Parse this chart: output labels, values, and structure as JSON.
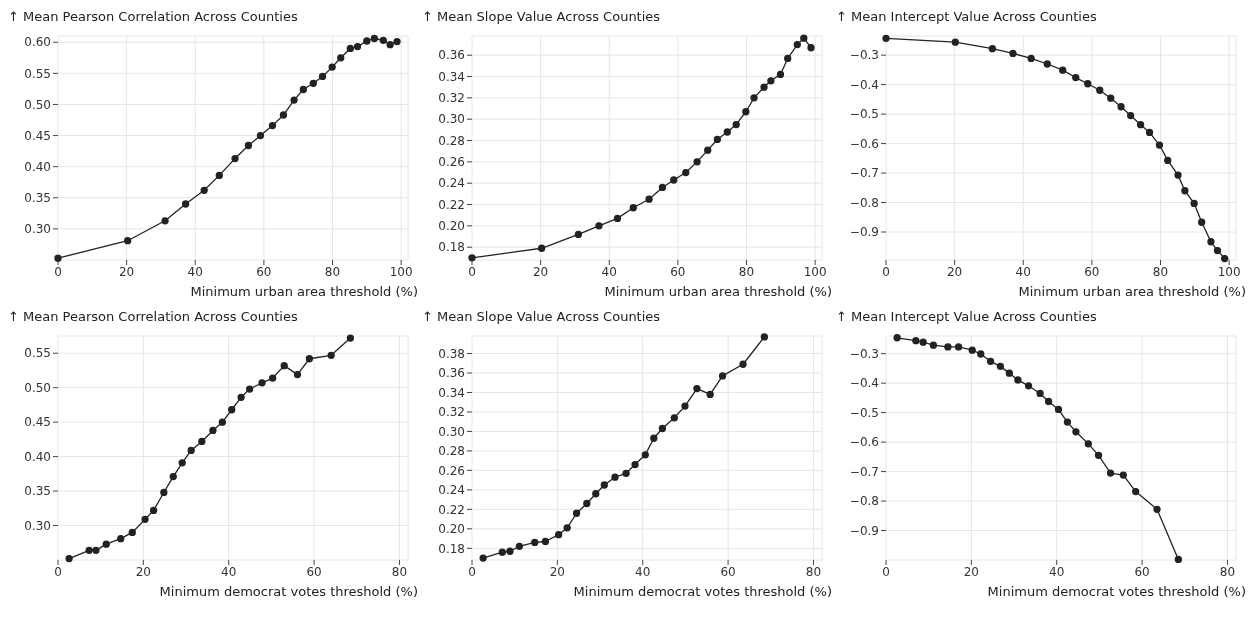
{
  "chart_data": [
    {
      "type": "line",
      "ylabel": "↑ Mean Pearson Correlation Across Counties",
      "xlabel": "Minimum urban area threshold (%)",
      "color": "#222222",
      "marker": "circle",
      "grid": true,
      "xlim": [
        0,
        102
      ],
      "xticks": [
        0,
        20,
        40,
        60,
        80,
        100
      ],
      "ylim": [
        0.25,
        0.61
      ],
      "yticks": [
        {
          "value": 0.3,
          "label": "0.30"
        },
        {
          "value": 0.35,
          "label": "0.35"
        },
        {
          "value": 0.4,
          "label": "0.40"
        },
        {
          "value": 0.45,
          "label": "0.45"
        },
        {
          "value": 0.5,
          "label": "0.50"
        },
        {
          "value": 0.55,
          "label": "0.55"
        },
        {
          "value": 0.6,
          "label": "0.60"
        }
      ],
      "x": [
        0,
        20.3,
        31.2,
        37.2,
        42.6,
        47,
        51.6,
        55.5,
        59,
        62.5,
        65.7,
        68.8,
        71.5,
        74.4,
        77.1,
        79.9,
        82.4,
        85.2,
        87.3,
        90,
        92.2,
        94.8,
        96.8,
        98.8
      ],
      "values": [
        0.253,
        0.281,
        0.313,
        0.34,
        0.362,
        0.386,
        0.413,
        0.434,
        0.45,
        0.466,
        0.483,
        0.507,
        0.524,
        0.534,
        0.545,
        0.56,
        0.575,
        0.59,
        0.593,
        0.602,
        0.606,
        0.603,
        0.596,
        0.601
      ]
    },
    {
      "type": "line",
      "ylabel": "↑ Mean Slope Value Across Counties",
      "xlabel": "Minimum urban area threshold (%)",
      "color": "#222222",
      "marker": "circle",
      "grid": true,
      "xlim": [
        0,
        102
      ],
      "xticks": [
        0,
        20,
        40,
        60,
        80,
        100
      ],
      "ylim": [
        0.168,
        0.378
      ],
      "yticks": [
        {
          "value": 0.18,
          "label": "0.18"
        },
        {
          "value": 0.2,
          "label": "0.20"
        },
        {
          "value": 0.22,
          "label": "0.22"
        },
        {
          "value": 0.24,
          "label": "0.24"
        },
        {
          "value": 0.26,
          "label": "0.26"
        },
        {
          "value": 0.28,
          "label": "0.28"
        },
        {
          "value": 0.3,
          "label": "0.30"
        },
        {
          "value": 0.32,
          "label": "0.32"
        },
        {
          "value": 0.34,
          "label": "0.34"
        },
        {
          "value": 0.36,
          "label": "0.36"
        }
      ],
      "x": [
        0,
        20.3,
        31,
        37,
        42.4,
        47,
        51.6,
        55.5,
        58.8,
        62.3,
        65.6,
        68.7,
        71.5,
        74.4,
        77,
        79.8,
        82.2,
        85.1,
        87.1,
        89.9,
        92,
        94.8,
        96.7,
        98.8
      ],
      "values": [
        0.17,
        0.179,
        0.192,
        0.2,
        0.207,
        0.217,
        0.225,
        0.236,
        0.243,
        0.25,
        0.26,
        0.271,
        0.281,
        0.288,
        0.295,
        0.307,
        0.32,
        0.33,
        0.336,
        0.342,
        0.357,
        0.37,
        0.376,
        0.367
      ]
    },
    {
      "type": "line",
      "ylabel": "↑ Mean Intercept Value Across Counties",
      "xlabel": "Minimum urban area threshold (%)",
      "color": "#222222",
      "marker": "circle",
      "grid": true,
      "xlim": [
        0,
        102
      ],
      "xticks": [
        0,
        20,
        40,
        60,
        80,
        100
      ],
      "ylim": [
        -0.995,
        -0.235
      ],
      "yticks": [
        {
          "value": -0.9,
          "label": "−0.9"
        },
        {
          "value": -0.8,
          "label": "−0.8"
        },
        {
          "value": -0.7,
          "label": "−0.7"
        },
        {
          "value": -0.6,
          "label": "−0.6"
        },
        {
          "value": -0.5,
          "label": "−0.5"
        },
        {
          "value": -0.4,
          "label": "−0.4"
        },
        {
          "value": -0.3,
          "label": "−0.3"
        }
      ],
      "x": [
        0,
        20.2,
        31,
        37,
        42.3,
        47,
        51.5,
        55.3,
        58.8,
        62.3,
        65.5,
        68.5,
        71.3,
        74.2,
        76.8,
        79.7,
        82.1,
        85.1,
        87.1,
        89.8,
        92,
        94.7,
        96.6,
        98.7
      ],
      "values": [
        -0.243,
        -0.256,
        -0.278,
        -0.294,
        -0.311,
        -0.33,
        -0.351,
        -0.376,
        -0.397,
        -0.419,
        -0.446,
        -0.475,
        -0.505,
        -0.536,
        -0.562,
        -0.605,
        -0.657,
        -0.707,
        -0.76,
        -0.803,
        -0.867,
        -0.933,
        -0.963,
        -0.99
      ]
    },
    {
      "type": "line",
      "ylabel": "↑ Mean Pearson Correlation Across Counties",
      "xlabel": "Minimum democrat votes threshold (%)",
      "color": "#222222",
      "marker": "circle",
      "grid": true,
      "xlim": [
        0,
        82
      ],
      "xticks": [
        0,
        20,
        40,
        60,
        80
      ],
      "ylim": [
        0.25,
        0.575
      ],
      "yticks": [
        {
          "value": 0.3,
          "label": "0.30"
        },
        {
          "value": 0.35,
          "label": "0.35"
        },
        {
          "value": 0.4,
          "label": "0.40"
        },
        {
          "value": 0.45,
          "label": "0.45"
        },
        {
          "value": 0.5,
          "label": "0.50"
        },
        {
          "value": 0.55,
          "label": "0.55"
        }
      ],
      "x": [
        2.6,
        7.3,
        8.9,
        11.3,
        14.7,
        17.4,
        20.4,
        22.4,
        24.8,
        27,
        29.1,
        31.2,
        33.7,
        36.3,
        38.5,
        40.7,
        42.9,
        44.9,
        47.8,
        50.3,
        53,
        56.1,
        58.9,
        64,
        68.5
      ],
      "values": [
        0.252,
        0.264,
        0.264,
        0.273,
        0.281,
        0.29,
        0.309,
        0.322,
        0.348,
        0.371,
        0.391,
        0.409,
        0.422,
        0.438,
        0.45,
        0.468,
        0.486,
        0.498,
        0.507,
        0.514,
        0.532,
        0.519,
        0.542,
        0.547,
        0.572
      ]
    },
    {
      "type": "line",
      "ylabel": "↑ Mean Slope Value Across Counties",
      "xlabel": "Minimum democrat votes threshold (%)",
      "color": "#222222",
      "marker": "circle",
      "grid": true,
      "xlim": [
        0,
        82
      ],
      "xticks": [
        0,
        20,
        40,
        60,
        80
      ],
      "ylim": [
        0.168,
        0.398
      ],
      "yticks": [
        {
          "value": 0.18,
          "label": "0.18"
        },
        {
          "value": 0.2,
          "label": "0.20"
        },
        {
          "value": 0.22,
          "label": "0.22"
        },
        {
          "value": 0.24,
          "label": "0.24"
        },
        {
          "value": 0.26,
          "label": "0.26"
        },
        {
          "value": 0.28,
          "label": "0.28"
        },
        {
          "value": 0.3,
          "label": "0.30"
        },
        {
          "value": 0.32,
          "label": "0.32"
        },
        {
          "value": 0.34,
          "label": "0.34"
        },
        {
          "value": 0.36,
          "label": "0.36"
        },
        {
          "value": 0.38,
          "label": "0.38"
        }
      ],
      "x": [
        2.6,
        7.1,
        8.9,
        11.1,
        14.7,
        17.2,
        20.3,
        22.3,
        24.5,
        26.9,
        29,
        31,
        33.5,
        36.1,
        38.2,
        40.6,
        42.6,
        44.6,
        47.4,
        49.9,
        52.7,
        55.8,
        58.7,
        63.5,
        68.5
      ],
      "values": [
        0.17,
        0.176,
        0.177,
        0.182,
        0.186,
        0.187,
        0.194,
        0.201,
        0.216,
        0.226,
        0.236,
        0.245,
        0.253,
        0.257,
        0.266,
        0.276,
        0.293,
        0.303,
        0.314,
        0.326,
        0.344,
        0.338,
        0.357,
        0.369,
        0.397
      ]
    },
    {
      "type": "line",
      "ylabel": "↑ Mean Intercept Value Across Counties",
      "xlabel": "Minimum democrat votes threshold (%)",
      "color": "#222222",
      "marker": "circle",
      "grid": true,
      "xlim": [
        0,
        82
      ],
      "xticks": [
        0,
        20,
        40,
        60,
        80
      ],
      "ylim": [
        -1.0,
        -0.24
      ],
      "yticks": [
        {
          "value": -0.9,
          "label": "−0.9"
        },
        {
          "value": -0.8,
          "label": "−0.8"
        },
        {
          "value": -0.7,
          "label": "−0.7"
        },
        {
          "value": -0.6,
          "label": "−0.6"
        },
        {
          "value": -0.5,
          "label": "−0.5"
        },
        {
          "value": -0.4,
          "label": "−0.4"
        },
        {
          "value": -0.3,
          "label": "−0.3"
        }
      ],
      "x": [
        2.6,
        7,
        8.7,
        11.1,
        14.5,
        17,
        20.2,
        22.2,
        24.5,
        26.8,
        28.9,
        30.9,
        33.4,
        36.1,
        38.1,
        40.4,
        42.5,
        44.5,
        47.4,
        49.8,
        52.6,
        55.6,
        58.5,
        63.5,
        68.5
      ],
      "values": [
        -0.246,
        -0.256,
        -0.261,
        -0.271,
        -0.277,
        -0.277,
        -0.288,
        -0.301,
        -0.326,
        -0.343,
        -0.366,
        -0.389,
        -0.409,
        -0.435,
        -0.462,
        -0.489,
        -0.532,
        -0.565,
        -0.606,
        -0.645,
        -0.705,
        -0.712,
        -0.768,
        -0.828,
        -0.998
      ]
    }
  ]
}
